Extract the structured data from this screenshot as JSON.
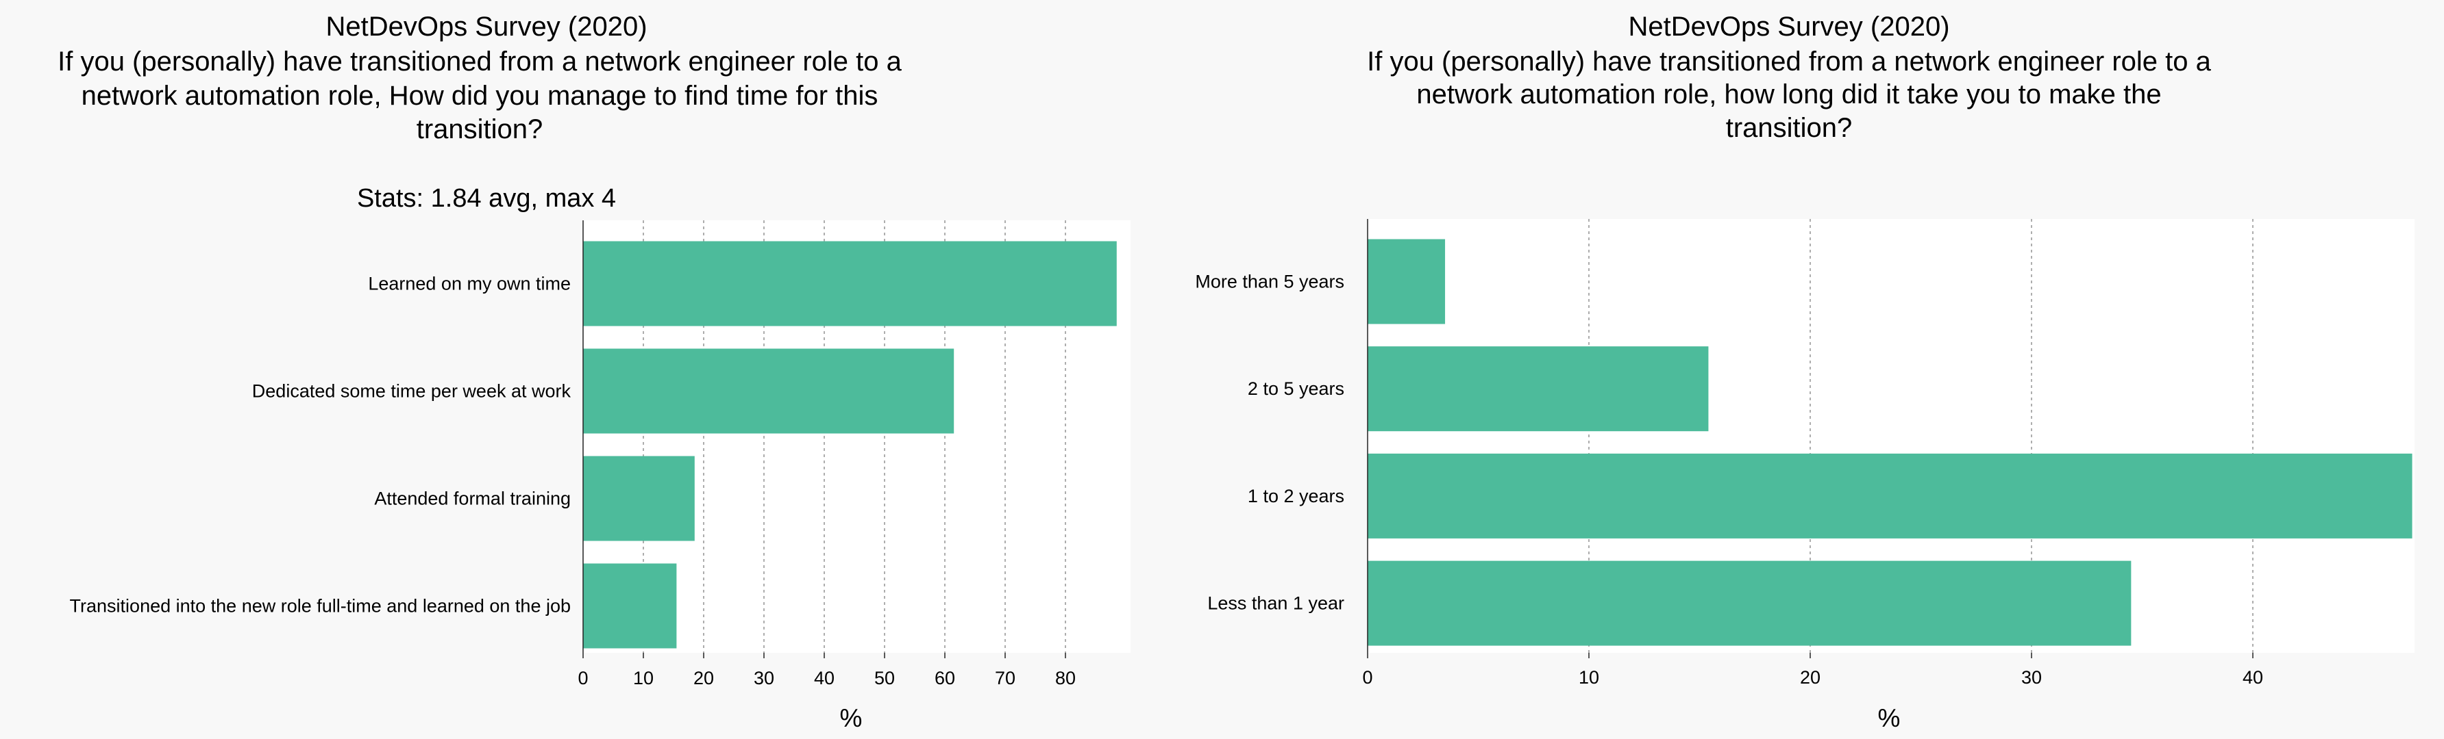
{
  "chart_data": [
    {
      "type": "bar",
      "orientation": "horizontal",
      "title": "NetDevOps Survey (2020)",
      "subtitle_lines": [
        "If you (personally) have transitioned from a network engineer role to a",
        "network automation role, How did you manage to find time for this",
        "transition?"
      ],
      "stats": "Stats: 1.84 avg, max 4",
      "categories": [
        "Learned on my own time",
        "Dedicated some time per week at work",
        "Attended formal training",
        "Transitioned into the new role full-time and learned on the job"
      ],
      "values": [
        88.5,
        61.5,
        18.5,
        15.5
      ],
      "xlabel": "%",
      "ylabel": "",
      "xlim": [
        0,
        90
      ],
      "xticks": [
        0,
        10,
        20,
        30,
        40,
        50,
        60,
        70,
        80
      ],
      "grid": true,
      "color": "#4dbb9b"
    },
    {
      "type": "bar",
      "orientation": "horizontal",
      "title": "NetDevOps Survey (2020)",
      "subtitle_lines": [
        "If you (personally) have transitioned from a network engineer role to a",
        "network automation role, how long did it take you to make the",
        "transition?"
      ],
      "categories": [
        "More than 5 years",
        "2 to 5 years",
        "1 to 2 years",
        "Less than 1 year"
      ],
      "values": [
        3.5,
        15.4,
        47.2,
        34.5
      ],
      "xlabel": "%",
      "ylabel": "",
      "xlim": [
        0,
        47.2
      ],
      "xticks": [
        0,
        10,
        20,
        30,
        40
      ],
      "grid": true,
      "color": "#4dbb9b"
    }
  ]
}
